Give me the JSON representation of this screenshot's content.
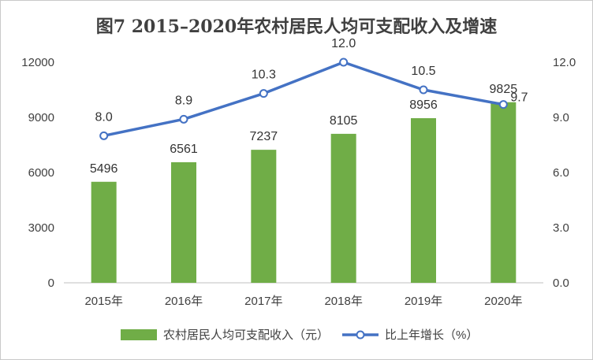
{
  "chart_data": {
    "type": "bar",
    "title": "图7  2015–2020年农村居民人均可支配收入及增速",
    "categories": [
      "2015年",
      "2016年",
      "2017年",
      "2018年",
      "2019年",
      "2020年"
    ],
    "series": [
      {
        "name": "农村居民人均可支配收入（元）",
        "type": "bar",
        "axis": "left",
        "values": [
          5496,
          6561,
          7237,
          8105,
          8956,
          9825
        ],
        "labels": [
          "5496",
          "6561",
          "7237",
          "8105",
          "8956",
          "9825"
        ],
        "color": "#70ad47"
      },
      {
        "name": "比上年增长（%）",
        "type": "line",
        "axis": "right",
        "values": [
          8.0,
          8.9,
          10.3,
          12.0,
          10.5,
          9.7
        ],
        "labels": [
          "8.0",
          "8.9",
          "10.3",
          "12.0",
          "10.5",
          "9.7"
        ],
        "color": "#4472c4"
      }
    ],
    "y_left": {
      "range": [
        0,
        12000
      ],
      "ticks": [
        "0",
        "3000",
        "6000",
        "9000",
        "12000"
      ]
    },
    "y_right": {
      "range": [
        0,
        12.0
      ],
      "ticks": [
        "0.0",
        "3.0",
        "6.0",
        "9.0",
        "12.0"
      ]
    },
    "grid": false,
    "legend": "bottom"
  }
}
